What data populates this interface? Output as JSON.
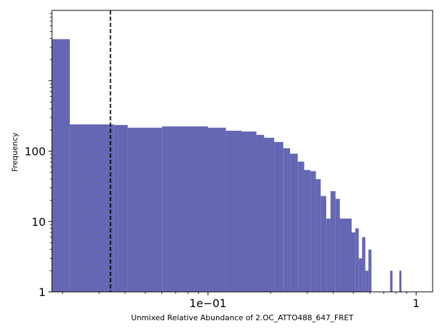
{
  "chart_data": {
    "type": "bar",
    "subtype": "histogram",
    "title": "",
    "xlabel": "Unmixed Relative Abundance of 2.OC_ATTO488_647_FRET",
    "ylabel": "Frequency",
    "xscale": "log",
    "yscale": "log",
    "xlim": [
      0.0178,
      1.2
    ],
    "ylim": [
      1,
      10000
    ],
    "xticks": [
      {
        "value": 0.1,
        "label": "1e−01"
      },
      {
        "value": 1,
        "label": "1"
      }
    ],
    "yticks": [
      {
        "value": 1,
        "label": "1"
      },
      {
        "value": 10,
        "label": "10"
      },
      {
        "value": 100,
        "label": "100"
      }
    ],
    "threshold_line": {
      "x": 0.034,
      "style": "dashed",
      "color": "#000000"
    },
    "bar_color": "#6667b3",
    "bins": [
      {
        "x0": 0.0178,
        "x1": 0.0217,
        "count": 3900
      },
      {
        "x0": 0.0217,
        "x1": 0.0354,
        "count": 240
      },
      {
        "x0": 0.0354,
        "x1": 0.0412,
        "count": 235
      },
      {
        "x0": 0.0412,
        "x1": 0.0602,
        "count": 215
      },
      {
        "x0": 0.0602,
        "x1": 0.1,
        "count": 225
      },
      {
        "x0": 0.1,
        "x1": 0.122,
        "count": 215
      },
      {
        "x0": 0.122,
        "x1": 0.145,
        "count": 195
      },
      {
        "x0": 0.145,
        "x1": 0.171,
        "count": 190
      },
      {
        "x0": 0.171,
        "x1": 0.186,
        "count": 170
      },
      {
        "x0": 0.186,
        "x1": 0.208,
        "count": 155
      },
      {
        "x0": 0.208,
        "x1": 0.23,
        "count": 135
      },
      {
        "x0": 0.23,
        "x1": 0.248,
        "count": 110
      },
      {
        "x0": 0.248,
        "x1": 0.27,
        "count": 92
      },
      {
        "x0": 0.27,
        "x1": 0.29,
        "count": 71
      },
      {
        "x0": 0.29,
        "x1": 0.31,
        "count": 54
      },
      {
        "x0": 0.31,
        "x1": 0.33,
        "count": 52
      },
      {
        "x0": 0.33,
        "x1": 0.348,
        "count": 40
      },
      {
        "x0": 0.348,
        "x1": 0.37,
        "count": 23
      },
      {
        "x0": 0.37,
        "x1": 0.388,
        "count": 11
      },
      {
        "x0": 0.388,
        "x1": 0.41,
        "count": 27
      },
      {
        "x0": 0.41,
        "x1": 0.43,
        "count": 21
      },
      {
        "x0": 0.43,
        "x1": 0.49,
        "count": 11
      },
      {
        "x0": 0.49,
        "x1": 0.51,
        "count": 7
      },
      {
        "x0": 0.51,
        "x1": 0.53,
        "count": 8
      },
      {
        "x0": 0.53,
        "x1": 0.55,
        "count": 3
      },
      {
        "x0": 0.55,
        "x1": 0.57,
        "count": 6
      },
      {
        "x0": 0.57,
        "x1": 0.59,
        "count": 2
      },
      {
        "x0": 0.59,
        "x1": 0.61,
        "count": 4
      },
      {
        "x0": 0.75,
        "x1": 0.77,
        "count": 2
      },
      {
        "x0": 0.83,
        "x1": 0.85,
        "count": 2
      }
    ]
  }
}
